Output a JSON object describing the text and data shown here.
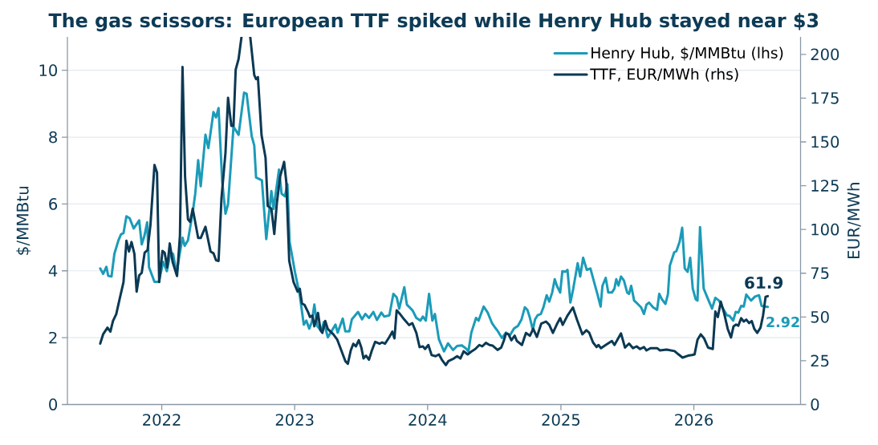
{
  "chart_data": {
    "type": "line",
    "title": "The gas scissors: European TTF spiked while Henry Hub stayed near $3",
    "ylabel": "$/MMBtu",
    "y2label": "EUR/MWh",
    "xlim": [
      "2021-04-17",
      "2026-10-21"
    ],
    "xticks": [
      {
        "value": "2022-01-01",
        "label": "2022"
      },
      {
        "value": "2023-01-01",
        "label": "2023"
      },
      {
        "value": "2024-01-01",
        "label": "2024"
      },
      {
        "value": "2025-01-01",
        "label": "2025"
      },
      {
        "value": "2026-01-01",
        "label": "2026"
      }
    ],
    "ylim": [
      0,
      11
    ],
    "yticks": [
      0,
      2,
      4,
      6,
      8,
      10
    ],
    "y2lim": [
      0,
      210
    ],
    "y2ticks": [
      0,
      25,
      50,
      75,
      100,
      125,
      150,
      175,
      200
    ],
    "grid": "y",
    "legend": "top right",
    "series": [
      {
        "name": "Henry Hub, $/MMBtu (lhs)",
        "color": "#1b9bb9",
        "x": [
          "2021-07-16",
          "2021-07-24",
          "2021-08-02",
          "2021-08-07",
          "2021-08-16",
          "2021-08-24",
          "2021-09-04",
          "2021-09-11",
          "2021-09-18",
          "2021-09-26",
          "2021-10-05",
          "2021-10-16",
          "2021-10-31",
          "2021-11-07",
          "2021-11-14",
          "2021-11-22",
          "2021-11-27",
          "2021-12-12",
          "2021-12-24",
          "2022-01-05",
          "2022-01-15",
          "2022-01-25",
          "2022-02-01",
          "2022-02-11",
          "2022-02-18",
          "2022-02-27",
          "2022-03-05",
          "2022-03-14",
          "2022-03-27",
          "2022-04-03",
          "2022-04-11",
          "2022-04-18",
          "2022-05-01",
          "2022-05-09",
          "2022-05-23",
          "2022-05-30",
          "2022-06-06",
          "2022-06-16",
          "2022-06-25",
          "2022-07-02",
          "2022-07-17",
          "2022-07-31",
          "2022-08-15",
          "2022-08-22",
          "2022-09-05",
          "2022-09-12",
          "2022-09-17",
          "2022-10-03",
          "2022-10-15",
          "2022-10-29",
          "2022-11-04",
          "2022-11-19",
          "2022-11-26",
          "2022-12-05",
          "2022-12-12",
          "2022-12-18",
          "2023-01-02",
          "2023-01-15",
          "2023-01-26",
          "2023-02-02",
          "2023-02-10",
          "2023-02-17",
          "2023-02-24",
          "2023-03-04",
          "2023-03-15",
          "2023-03-22",
          "2023-04-02",
          "2023-04-12",
          "2023-04-23",
          "2023-04-29",
          "2023-05-13",
          "2023-05-20",
          "2023-05-31",
          "2023-06-07",
          "2023-06-24",
          "2023-07-05",
          "2023-07-14",
          "2023-07-24",
          "2023-08-05",
          "2023-08-15",
          "2023-08-27",
          "2023-09-04",
          "2023-09-18",
          "2023-09-29",
          "2023-10-08",
          "2023-10-15",
          "2023-10-29",
          "2023-11-05",
          "2023-11-21",
          "2023-12-01",
          "2023-12-12",
          "2023-12-19",
          "2023-12-27",
          "2024-01-05",
          "2024-01-14",
          "2024-01-21",
          "2024-02-01",
          "2024-02-15",
          "2024-02-26",
          "2024-03-11",
          "2024-03-22",
          "2024-04-04",
          "2024-04-16",
          "2024-04-22",
          "2024-04-30",
          "2024-05-13",
          "2024-05-20",
          "2024-06-03",
          "2024-06-14",
          "2024-06-26",
          "2024-07-05",
          "2024-07-12",
          "2024-07-23",
          "2024-08-03",
          "2024-08-14",
          "2024-08-25",
          "2024-09-05",
          "2024-09-15",
          "2024-09-24",
          "2024-10-01",
          "2024-10-08",
          "2024-10-16",
          "2024-10-22",
          "2024-10-29",
          "2024-11-07",
          "2024-11-14",
          "2024-11-23",
          "2024-11-30",
          "2024-12-08",
          "2024-12-15",
          "2024-12-21",
          "2024-12-30",
          "2025-01-05",
          "2025-01-13",
          "2025-01-19",
          "2025-01-27",
          "2025-02-04",
          "2025-02-16",
          "2025-02-23",
          "2025-03-03",
          "2025-03-13",
          "2025-03-23",
          "2025-04-04",
          "2025-04-12",
          "2025-04-20",
          "2025-04-25",
          "2025-05-04",
          "2025-05-11",
          "2025-05-21",
          "2025-05-28",
          "2025-06-02",
          "2025-06-08",
          "2025-06-15",
          "2025-06-23",
          "2025-07-02",
          "2025-07-07",
          "2025-07-13",
          "2025-07-21",
          "2025-07-29",
          "2025-08-09",
          "2025-08-17",
          "2025-08-24",
          "2025-08-31",
          "2025-09-11",
          "2025-09-22",
          "2025-09-28",
          "2025-10-05",
          "2025-10-15",
          "2025-10-22",
          "2025-10-27",
          "2025-11-08",
          "2025-11-14",
          "2025-11-23",
          "2025-11-30",
          "2025-12-07",
          "2025-12-15",
          "2025-12-22",
          "2025-12-29",
          "2026-01-06",
          "2026-01-11",
          "2026-01-18",
          "2026-01-28",
          "2026-02-09",
          "2026-02-20",
          "2026-03-01",
          "2026-03-11",
          "2026-03-20",
          "2026-04-02",
          "2026-04-09",
          "2026-04-19",
          "2026-04-26",
          "2026-05-03",
          "2026-05-11",
          "2026-05-18",
          "2026-05-25",
          "2026-06-07",
          "2026-06-18",
          "2026-06-29",
          "2026-07-06",
          "2026-07-14",
          "2026-07-23"
        ],
        "values": [
          4.07,
          3.91,
          4.12,
          3.85,
          3.83,
          4.51,
          4.91,
          5.09,
          5.13,
          5.63,
          5.57,
          5.27,
          5.51,
          4.79,
          5.03,
          5.45,
          4.11,
          3.67,
          3.67,
          4.27,
          3.99,
          4.55,
          4.51,
          3.91,
          4.43,
          4.99,
          4.75,
          4.91,
          5.75,
          6.31,
          7.31,
          6.53,
          8.07,
          7.67,
          8.75,
          8.59,
          8.87,
          6.67,
          5.71,
          5.99,
          8.31,
          8.07,
          9.33,
          9.3,
          8.03,
          7.75,
          6.79,
          6.71,
          4.95,
          6.39,
          5.85,
          7.03,
          6.31,
          6.23,
          6.59,
          4.87,
          3.95,
          3.27,
          2.39,
          2.51,
          2.27,
          2.47,
          2.99,
          2.35,
          2.19,
          2.47,
          2.01,
          2.19,
          2.39,
          2.15,
          2.57,
          2.19,
          2.19,
          2.55,
          2.77,
          2.55,
          2.71,
          2.59,
          2.77,
          2.53,
          2.75,
          2.63,
          2.67,
          3.31,
          3.21,
          2.87,
          3.51,
          2.99,
          2.81,
          2.59,
          2.51,
          2.63,
          2.51,
          3.31,
          2.51,
          2.71,
          1.95,
          1.59,
          1.83,
          1.63,
          1.75,
          1.77,
          1.67,
          1.59,
          2.15,
          2.59,
          2.51,
          2.93,
          2.75,
          2.43,
          2.29,
          2.19,
          1.99,
          2.15,
          2.07,
          2.27,
          2.35,
          2.55,
          2.91,
          2.83,
          2.59,
          2.23,
          2.55,
          2.67,
          2.71,
          2.91,
          3.27,
          3.08,
          3.35,
          3.75,
          3.55,
          3.35,
          3.99,
          3.97,
          4.03,
          3.05,
          3.47,
          4.23,
          3.83,
          4.39,
          4.03,
          4.07,
          3.59,
          3.27,
          2.93,
          3.55,
          3.79,
          3.35,
          3.35,
          3.47,
          3.75,
          3.56,
          3.83,
          3.71,
          3.35,
          3.31,
          3.55,
          3.11,
          3.03,
          2.91,
          2.71,
          2.99,
          3.05,
          2.91,
          2.83,
          3.31,
          3.15,
          3.01,
          3.31,
          4.15,
          4.55,
          4.59,
          4.87,
          5.29,
          4.07,
          3.97,
          4.39,
          3.47,
          3.15,
          3.11,
          5.31,
          3.47,
          3.15,
          2.87,
          3.19,
          3.11,
          2.91,
          2.67,
          2.65,
          2.51,
          2.77,
          2.75,
          2.95,
          2.93,
          3.29,
          3.11,
          3.23,
          3.27,
          2.95,
          2.93,
          2.92
        ],
        "value_labels": [
          null,
          null,
          null,
          null,
          null,
          null,
          null,
          null,
          null,
          null,
          null,
          null,
          null,
          null,
          null,
          null,
          null,
          null,
          null,
          null,
          null,
          null,
          null,
          null,
          null,
          null,
          null,
          null,
          null,
          null,
          null,
          null,
          null,
          null,
          null,
          null,
          null,
          null,
          null,
          null,
          null,
          null,
          null,
          null,
          null,
          null,
          null,
          null,
          null,
          null,
          null,
          null,
          null,
          null,
          null,
          null,
          null,
          null,
          null,
          null,
          null,
          null,
          null,
          null,
          null,
          null,
          null,
          null,
          null,
          null,
          null,
          null,
          null,
          null,
          null,
          null,
          null,
          null,
          null,
          null,
          null,
          null,
          null,
          null,
          null,
          null,
          null,
          null,
          null,
          null,
          null,
          null,
          null,
          null,
          null,
          null,
          null,
          null,
          null,
          null,
          null,
          null,
          null,
          null,
          null,
          null,
          null,
          null,
          null,
          null,
          null,
          null,
          null,
          null,
          null,
          null,
          null,
          null,
          null,
          null,
          null,
          null,
          null,
          null,
          null,
          null,
          null,
          null,
          null,
          null,
          null,
          null,
          null,
          null,
          null,
          null,
          null,
          null,
          null,
          null,
          null,
          null,
          null,
          null,
          null,
          null,
          null,
          null,
          null,
          null,
          null,
          null,
          null,
          null,
          null,
          null,
          null,
          null,
          null,
          null,
          null,
          null,
          null,
          null,
          null,
          null,
          null,
          null,
          null,
          null,
          null,
          null,
          null,
          null,
          null,
          null,
          null,
          null,
          null,
          null,
          null,
          null,
          null,
          null,
          null,
          null,
          null,
          null,
          null,
          null,
          null,
          null,
          null,
          null,
          null,
          null,
          null,
          null,
          null,
          null,
          "2.92"
        ]
      },
      {
        "name": "TTF, EUR/MWh (rhs)",
        "color": "#0b3954",
        "axis": "y2",
        "x": [
          "2021-07-16",
          "2021-07-24",
          "2021-08-05",
          "2021-08-13",
          "2021-08-20",
          "2021-08-29",
          "2021-09-07",
          "2021-09-18",
          "2021-09-26",
          "2021-10-03",
          "2021-10-10",
          "2021-10-18",
          "2021-10-24",
          "2021-10-31",
          "2021-11-07",
          "2021-11-15",
          "2021-11-23",
          "2021-12-01",
          "2021-12-12",
          "2021-12-19",
          "2021-12-25",
          "2022-01-03",
          "2022-01-09",
          "2022-01-16",
          "2022-01-23",
          "2022-01-31",
          "2022-02-12",
          "2022-02-20",
          "2022-02-27",
          "2022-03-06",
          "2022-03-14",
          "2022-03-20",
          "2022-03-27",
          "2022-04-11",
          "2022-04-18",
          "2022-05-01",
          "2022-05-15",
          "2022-05-23",
          "2022-05-30",
          "2022-06-06",
          "2022-06-14",
          "2022-06-25",
          "2022-07-02",
          "2022-07-11",
          "2022-07-17",
          "2022-07-23",
          "2022-07-31",
          "2022-08-08",
          "2022-08-20",
          "2022-09-01",
          "2022-09-12",
          "2022-09-17",
          "2022-09-22",
          "2022-10-02",
          "2022-10-13",
          "2022-10-19",
          "2022-10-29",
          "2022-11-06",
          "2022-11-13",
          "2022-11-22",
          "2022-12-03",
          "2022-12-09",
          "2022-12-17",
          "2022-12-29",
          "2023-01-09",
          "2023-01-15",
          "2023-01-21",
          "2023-01-28",
          "2023-02-06",
          "2023-02-12",
          "2023-02-19",
          "2023-02-24",
          "2023-03-06",
          "2023-03-13",
          "2023-03-18",
          "2023-03-26",
          "2023-04-02",
          "2023-04-17",
          "2023-04-28",
          "2023-05-09",
          "2023-05-20",
          "2023-05-27",
          "2023-06-04",
          "2023-06-11",
          "2023-06-18",
          "2023-06-26",
          "2023-07-03",
          "2023-07-09",
          "2023-07-16",
          "2023-07-24",
          "2023-08-01",
          "2023-08-10",
          "2023-08-22",
          "2023-08-29",
          "2023-09-06",
          "2023-09-18",
          "2023-09-26",
          "2023-10-02",
          "2023-10-08",
          "2023-10-18",
          "2023-10-29",
          "2023-11-11",
          "2023-11-20",
          "2023-12-01",
          "2023-12-10",
          "2023-12-19",
          "2023-12-25",
          "2024-01-03",
          "2024-01-12",
          "2024-01-23",
          "2024-02-01",
          "2024-02-09",
          "2024-02-20",
          "2024-02-27",
          "2024-03-13",
          "2024-03-22",
          "2024-03-31",
          "2024-04-09",
          "2024-04-20",
          "2024-04-30",
          "2024-05-11",
          "2024-05-22",
          "2024-05-30",
          "2024-06-09",
          "2024-06-19",
          "2024-06-27",
          "2024-07-11",
          "2024-07-21",
          "2024-07-28",
          "2024-08-03",
          "2024-08-10",
          "2024-08-18",
          "2024-08-27",
          "2024-09-02",
          "2024-09-16",
          "2024-09-27",
          "2024-10-08",
          "2024-10-17",
          "2024-10-27",
          "2024-11-08",
          "2024-11-21",
          "2024-11-30",
          "2024-12-10",
          "2024-12-21",
          "2024-12-30",
          "2025-01-06",
          "2025-01-19",
          "2025-02-03",
          "2025-02-14",
          "2025-03-01",
          "2025-03-12",
          "2025-03-20",
          "2025-03-30",
          "2025-04-09",
          "2025-04-14",
          "2025-04-21",
          "2025-05-04",
          "2025-05-21",
          "2025-05-28",
          "2025-06-15",
          "2025-06-26",
          "2025-07-07",
          "2025-07-18",
          "2025-07-28",
          "2025-08-06",
          "2025-08-17",
          "2025-08-24",
          "2025-09-04",
          "2025-09-22",
          "2025-09-30",
          "2025-10-18",
          "2025-11-09",
          "2025-11-20",
          "2025-12-01",
          "2025-12-16",
          "2025-12-27",
          "2026-01-03",
          "2026-01-11",
          "2026-01-20",
          "2026-01-29",
          "2026-02-09",
          "2026-02-22",
          "2026-03-01",
          "2026-03-08",
          "2026-03-16",
          "2026-03-25",
          "2026-04-04",
          "2026-04-13",
          "2026-04-20",
          "2026-04-27",
          "2026-05-03",
          "2026-05-11",
          "2026-05-18",
          "2026-05-25",
          "2026-06-02",
          "2026-06-09",
          "2026-06-16",
          "2026-06-24",
          "2026-07-03",
          "2026-07-10",
          "2026-07-17",
          "2026-07-23"
        ],
        "values": [
          34.8,
          40.1,
          43.9,
          41.6,
          47.7,
          51.6,
          59.9,
          69.9,
          93.5,
          87.4,
          92.8,
          85.9,
          64.5,
          73.7,
          75.2,
          86.7,
          88.2,
          102.7,
          136.8,
          132.5,
          69.9,
          87.7,
          86.7,
          78.3,
          92.0,
          81.3,
          73.4,
          96.6,
          192.8,
          130.2,
          105.8,
          104.3,
          111.9,
          95.1,
          95.1,
          101.5,
          87.4,
          86.4,
          82.4,
          82.0,
          118.0,
          143.9,
          175.2,
          159.2,
          159.2,
          191.3,
          197.4,
          210,
          null,
          210,
          188.2,
          185.9,
          187.0,
          153.9,
          140.9,
          113.4,
          111.9,
          97.4,
          114.9,
          130.2,
          138.6,
          127.1,
          82.1,
          69.9,
          64.5,
          66.1,
          57.7,
          56.9,
          53.1,
          50.0,
          50.8,
          44.7,
          52.3,
          42.4,
          40.9,
          47.7,
          43.1,
          40.1,
          37.0,
          30.9,
          24.8,
          23.3,
          30.9,
          34.7,
          33.2,
          36.7,
          32.5,
          26.3,
          27.9,
          25.6,
          30.9,
          35.8,
          34.7,
          35.5,
          34.7,
          38.6,
          41.6,
          37.8,
          53.8,
          51.5,
          48.5,
          45.4,
          46.5,
          40.9,
          32.8,
          33.2,
          31.7,
          34.0,
          28.2,
          27.6,
          28.6,
          25.6,
          22.5,
          24.8,
          26.3,
          27.6,
          26.3,
          30.4,
          28.6,
          30.2,
          31.7,
          34.0,
          33.2,
          35.2,
          34.0,
          33.7,
          31.2,
          32.5,
          36.3,
          40.6,
          40.1,
          36.7,
          39.3,
          36.3,
          34.0,
          40.9,
          39.3,
          43.2,
          38.6,
          46.2,
          47.4,
          45.5,
          40.9,
          45.9,
          49.3,
          45.5,
          50.8,
          55.4,
          48.5,
          40.1,
          42.4,
          40.9,
          35.5,
          32.8,
          34.0,
          32.2,
          34.0,
          36.3,
          34.0,
          40.6,
          32.5,
          34.8,
          32.2,
          33.2,
          31.7,
          32.8,
          30.9,
          32.2,
          32.2,
          30.9,
          31.4,
          30.5,
          28.6,
          26.8,
          27.9,
          28.3,
          28.6,
          37.0,
          40.1,
          37.8,
          32.5,
          31.7,
          53.1,
          50.0,
          58.7,
          52.3,
          43.2,
          38.3,
          44.7,
          45.7,
          45.0,
          49.3,
          47.4,
          48.5,
          46.5,
          47.7,
          43.2,
          40.9,
          43.9,
          50.8,
          61.5,
          61.9
        ],
        "value_labels": [
          null,
          null,
          null,
          null,
          null,
          null,
          null,
          null,
          null,
          null,
          null,
          null,
          null,
          null,
          null,
          null,
          null,
          null,
          null,
          null,
          null,
          null,
          null,
          null,
          null,
          null,
          null,
          null,
          null,
          null,
          null,
          null,
          null,
          null,
          null,
          null,
          null,
          null,
          null,
          null,
          null,
          null,
          null,
          null,
          null,
          null,
          null,
          null,
          null,
          null,
          null,
          null,
          null,
          null,
          null,
          null,
          null,
          null,
          null,
          null,
          null,
          null,
          null,
          null,
          null,
          null,
          null,
          null,
          null,
          null,
          null,
          null,
          null,
          null,
          null,
          null,
          null,
          null,
          null,
          null,
          null,
          null,
          null,
          null,
          null,
          null,
          null,
          null,
          null,
          null,
          null,
          null,
          null,
          null,
          null,
          null,
          null,
          null,
          null,
          null,
          null,
          null,
          null,
          null,
          null,
          null,
          null,
          null,
          null,
          null,
          null,
          null,
          null,
          null,
          null,
          null,
          null,
          null,
          null,
          null,
          null,
          null,
          null,
          null,
          null,
          null,
          null,
          null,
          null,
          null,
          null,
          null,
          null,
          null,
          null,
          null,
          null,
          null,
          null,
          null,
          null,
          null,
          null,
          null,
          null,
          null,
          null,
          null,
          null,
          null,
          null,
          null,
          null,
          null,
          null,
          null,
          null,
          null,
          null,
          null,
          null,
          null,
          null,
          null,
          null,
          null,
          null,
          null,
          null,
          null,
          null,
          null,
          null,
          null,
          null,
          null,
          null,
          null,
          null,
          null,
          null,
          null,
          null,
          null,
          null,
          null,
          null,
          null,
          null,
          null,
          null,
          null,
          null,
          null,
          null,
          null,
          null,
          null,
          null,
          null,
          null,
          "61.9"
        ]
      }
    ]
  }
}
